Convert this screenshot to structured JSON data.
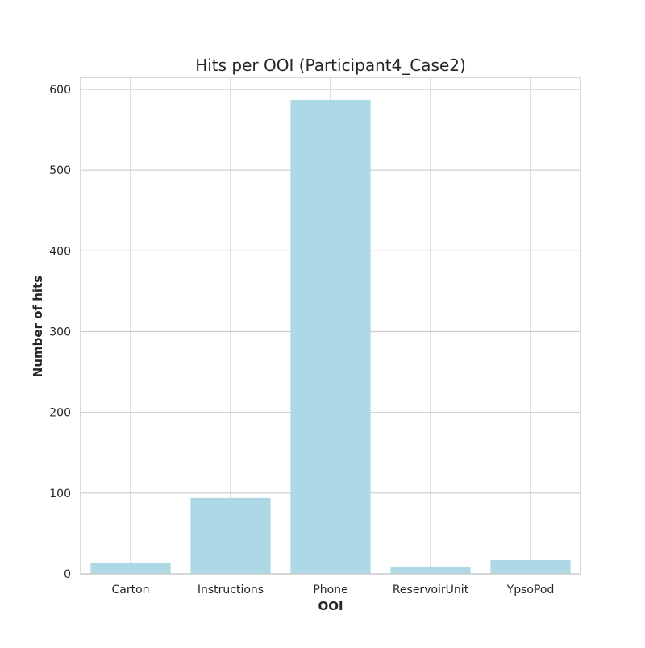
{
  "chart_data": {
    "type": "bar",
    "title": "Hits per OOI (Participant4_Case2)",
    "xlabel": "OOI",
    "ylabel": "Number of hits",
    "categories": [
      "Carton",
      "Instructions",
      "Phone",
      "ReservoirUnit",
      "YpsoPod"
    ],
    "values": [
      13,
      94,
      587,
      9,
      17
    ],
    "ylim": [
      0,
      615
    ],
    "yticks": [
      0,
      100,
      200,
      300,
      400,
      500,
      600
    ],
    "grid": true,
    "legend": "none",
    "bar_color": "#add8e6",
    "grid_color": "#cccccc"
  }
}
